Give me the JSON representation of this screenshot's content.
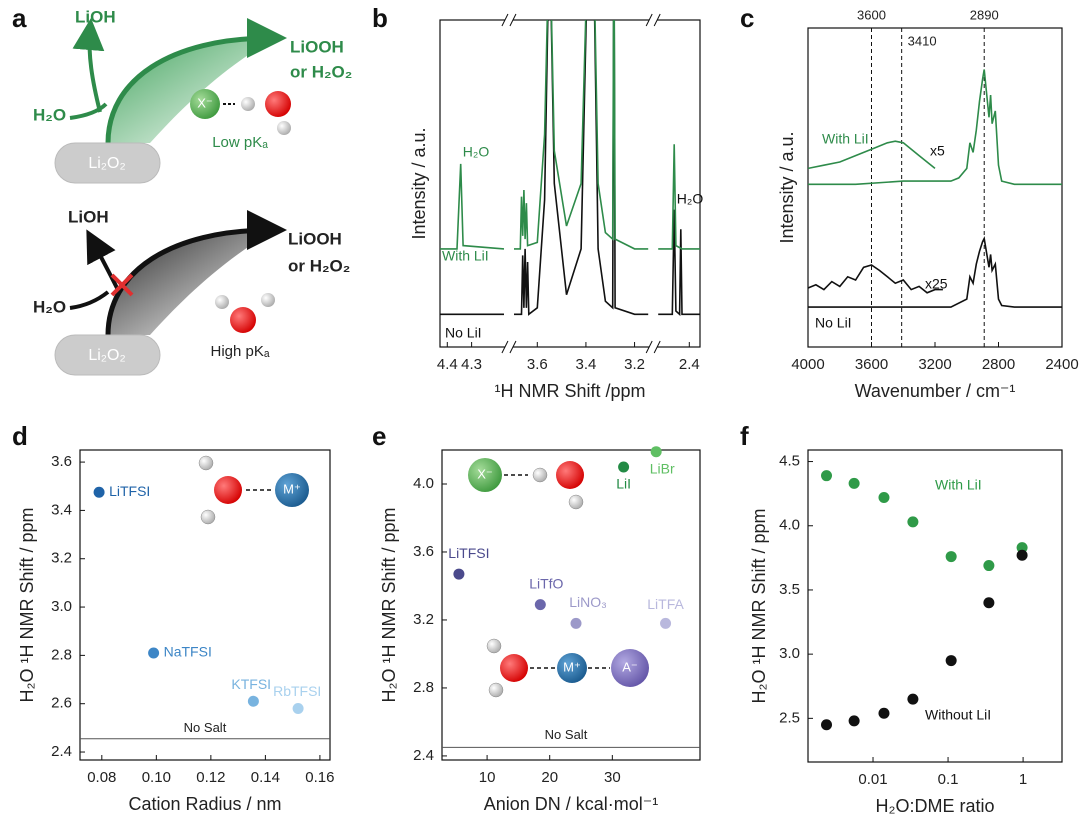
{
  "panel_labels": [
    "a",
    "b",
    "c",
    "d",
    "e",
    "f"
  ],
  "diagram": {
    "top": {
      "product_side": "LiOH",
      "product_main": "LiOOH",
      "product_alt": "or H₂O₂",
      "reactant": "H₂O",
      "anion": "X⁻",
      "pka": "Low pKₐ",
      "surface": "Li₂O₂"
    },
    "bottom": {
      "product_side": "LiOH",
      "product_main": "LiOOH",
      "product_alt": "or H₂O₂",
      "reactant": "H₂O",
      "pka": "High pKₐ",
      "surface": "Li₂O₂"
    }
  },
  "chart_data": [
    {
      "type": "line",
      "xlabel": "¹H NMR Shift /ppm",
      "ylabel": "Intensity / a.u.",
      "xsegments": [
        [
          4.43,
          4.167
        ],
        [
          3.696,
          3.144
        ],
        [
          2.528,
          2.356
        ]
      ],
      "ylim": [
        0,
        100
      ],
      "xticks": [
        4.4,
        4.3,
        3.6,
        3.4,
        3.2,
        2.4
      ],
      "annotations": [
        "H₂O",
        "H₂O"
      ],
      "series": [
        {
          "name": "No LiI",
          "color": "#111111",
          "x": [
            4.43,
            4.167,
            null,
            3.696,
            3.665,
            3.66,
            3.655,
            3.65,
            3.645,
            3.64,
            3.635,
            3.6,
            3.57,
            3.55,
            3.53,
            3.48,
            3.42,
            3.39,
            3.37,
            3.35,
            3.32,
            3.29,
            3.285,
            3.28,
            3.2,
            3.144,
            null,
            2.528,
            2.47,
            2.462,
            2.455,
            2.44,
            2.435,
            2.43,
            2.356
          ],
          "values": [
            10,
            10,
            null,
            10,
            10,
            28,
            12,
            30,
            12,
            26,
            10,
            12,
            45,
            130,
            50,
            16,
            30,
            130,
            130,
            30,
            14,
            12,
            130,
            12,
            10,
            10,
            null,
            10,
            10,
            42,
            11,
            10,
            36,
            10,
            10
          ]
        },
        {
          "name": "With LiI",
          "color": "#2e8b4a",
          "x": [
            4.43,
            4.36,
            4.345,
            4.335,
            4.167,
            null,
            3.696,
            3.67,
            3.665,
            3.66,
            3.655,
            3.65,
            3.645,
            3.64,
            3.6,
            3.57,
            3.55,
            3.53,
            3.48,
            3.42,
            3.39,
            3.37,
            3.35,
            3.32,
            3.29,
            3.285,
            3.28,
            3.2,
            3.144,
            null,
            2.528,
            2.47,
            2.462,
            2.455,
            2.43,
            2.356
          ],
          "values": [
            30,
            30,
            56,
            31,
            30,
            null,
            30,
            30,
            46,
            34,
            48,
            33,
            44,
            31,
            32,
            65,
            130,
            60,
            37,
            50,
            130,
            130,
            50,
            35,
            33,
            130,
            33,
            30,
            30,
            null,
            30,
            30,
            62,
            31,
            30,
            30
          ]
        }
      ]
    },
    {
      "type": "line",
      "xlabel": "Wavenumber / cm⁻¹",
      "ylabel": "Intensity / a.u.",
      "xlim": [
        4000,
        2400
      ],
      "ylim": [
        0,
        100
      ],
      "xticks": [
        4000,
        3600,
        3200,
        2800,
        2400
      ],
      "vlines": [
        3600,
        3410,
        2890
      ],
      "series": [
        {
          "name": "With LiI",
          "color": "#2e8b4a",
          "x": [
            4000,
            3700,
            3400,
            3100,
            3050,
            3000,
            2980,
            2960,
            2940,
            2920,
            2900,
            2890,
            2880,
            2860,
            2850,
            2840,
            2820,
            2800,
            2780,
            2700,
            2400
          ],
          "values": [
            51,
            51,
            52,
            52,
            53,
            56,
            64,
            61,
            68,
            77,
            84,
            87,
            82,
            72,
            79,
            70,
            74,
            57,
            52,
            51,
            51
          ]
        },
        {
          "name": "x5",
          "color": "#2e8b4a",
          "x": [
            4000,
            3900,
            3800,
            3700,
            3600,
            3500,
            3450,
            3400,
            3300,
            3200
          ],
          "values": [
            56,
            57,
            58,
            60,
            62,
            64,
            64.5,
            64,
            60,
            56
          ]
        },
        {
          "name": "No LiI",
          "color": "#111111",
          "x": [
            4000,
            3100,
            3000,
            2980,
            2960,
            2940,
            2920,
            2900,
            2890,
            2880,
            2860,
            2850,
            2840,
            2820,
            2800,
            2780,
            2700,
            2400
          ],
          "values": [
            12.5,
            12.5,
            15,
            22,
            20,
            26,
            30,
            33,
            34,
            31,
            25,
            29,
            24,
            26,
            15,
            13,
            12.5,
            12.5
          ]
        },
        {
          "name": "x25",
          "color": "#111111",
          "x": [
            4000,
            3950,
            3900,
            3850,
            3800,
            3750,
            3700,
            3650,
            3600,
            3550,
            3500,
            3450,
            3400,
            3350,
            3300,
            3250,
            3200,
            3150
          ],
          "values": [
            18.5,
            19.5,
            18,
            20.5,
            19,
            22,
            21,
            25,
            25.7,
            24,
            22,
            20,
            21,
            18,
            19,
            17,
            18,
            18
          ]
        }
      ]
    },
    {
      "type": "scatter",
      "xlabel": "Cation Radius / nm",
      "ylabel": "H₂O ¹H NMR Shift / ppm",
      "xlim": [
        0.072,
        0.1637
      ],
      "ylim": [
        2.367,
        3.65
      ],
      "xticks": [
        0.08,
        {
          "value": 0.1,
          "label": "0.10"
        },
        0.12,
        0.14,
        0.16
      ],
      "yticks": [
        2.4,
        2.6,
        2.8,
        {
          "value": 3,
          "label": "3.0"
        },
        3.2,
        3.4,
        3.6
      ],
      "hline": 2.455,
      "hline_label": "No Salt",
      "inset_labels": [
        "M⁺"
      ],
      "series": [
        {
          "name": "LiTFSI",
          "color": "#1f63a8",
          "x": [
            0.079
          ],
          "values": [
            3.475
          ]
        },
        {
          "name": "NaTFSI",
          "color": "#3d86c6",
          "x": [
            0.099
          ],
          "values": [
            2.81
          ]
        },
        {
          "name": "KTFSI",
          "color": "#78b3df",
          "x": [
            0.1356
          ],
          "values": [
            2.61
          ]
        },
        {
          "name": "RbTFSI",
          "color": "#a9d1ee",
          "x": [
            0.152
          ],
          "values": [
            2.58
          ]
        }
      ]
    },
    {
      "type": "scatter",
      "xlabel": "Anion DN / kcal·mol⁻¹",
      "ylabel": "H₂O ¹H NMR Shift / ppm",
      "xlim": [
        2.8,
        44
      ],
      "ylim": [
        2.376,
        4.2
      ],
      "xticks": [
        10,
        20,
        30
      ],
      "yticks": [
        2.4,
        2.8,
        3.2,
        3.6,
        {
          "value": 4,
          "label": "4.0"
        }
      ],
      "hline": 2.45,
      "hline_label": "No Salt",
      "inset_labels": [
        "X⁻",
        "M⁺",
        "A⁻"
      ],
      "series": [
        {
          "name": "LiTFSI",
          "color": "#4b4a8c",
          "x": [
            5.5
          ],
          "values": [
            3.47
          ]
        },
        {
          "name": "LiTfO",
          "color": "#6b67ab",
          "x": [
            18.5
          ],
          "values": [
            3.29
          ]
        },
        {
          "name": "LiNO₃",
          "color": "#9c99c9",
          "x": [
            24.2
          ],
          "values": [
            3.18
          ]
        },
        {
          "name": "LiTFA",
          "color": "#b9b8dd",
          "x": [
            38.5
          ],
          "values": [
            3.18
          ]
        },
        {
          "name": "LiI",
          "color": "#238b45",
          "x": [
            31.8
          ],
          "values": [
            4.1
          ]
        },
        {
          "name": "LiBr",
          "color": "#5fbf63",
          "x": [
            37
          ],
          "values": [
            4.19
          ]
        }
      ]
    },
    {
      "type": "scatter",
      "xlabel": "H₂O:DME ratio",
      "ylabel": "H₂O ¹H NMR Shift / ppm",
      "xscale": "log",
      "xlim": [
        0.00136,
        3.3
      ],
      "ylim": [
        2.16,
        4.59
      ],
      "xticks": [
        0.01,
        0.1,
        1
      ],
      "yticks": [
        2.5,
        {
          "value": 3,
          "label": "3.0"
        },
        3.5,
        {
          "value": 4,
          "label": "4.0"
        },
        4.5
      ],
      "series": [
        {
          "name": "With LiI",
          "color": "#2f9a48",
          "x": [
            0.0024,
            0.0056,
            0.014,
            0.034,
            0.11,
            0.35,
            0.97
          ],
          "values": [
            4.39,
            4.33,
            4.22,
            4.03,
            3.76,
            3.69,
            3.83
          ]
        },
        {
          "name": "Without LiI",
          "color": "#111111",
          "x": [
            0.0024,
            0.0056,
            0.014,
            0.034,
            0.11,
            0.35,
            0.97
          ],
          "values": [
            2.45,
            2.48,
            2.54,
            2.65,
            2.95,
            3.4,
            3.77
          ]
        }
      ]
    }
  ]
}
